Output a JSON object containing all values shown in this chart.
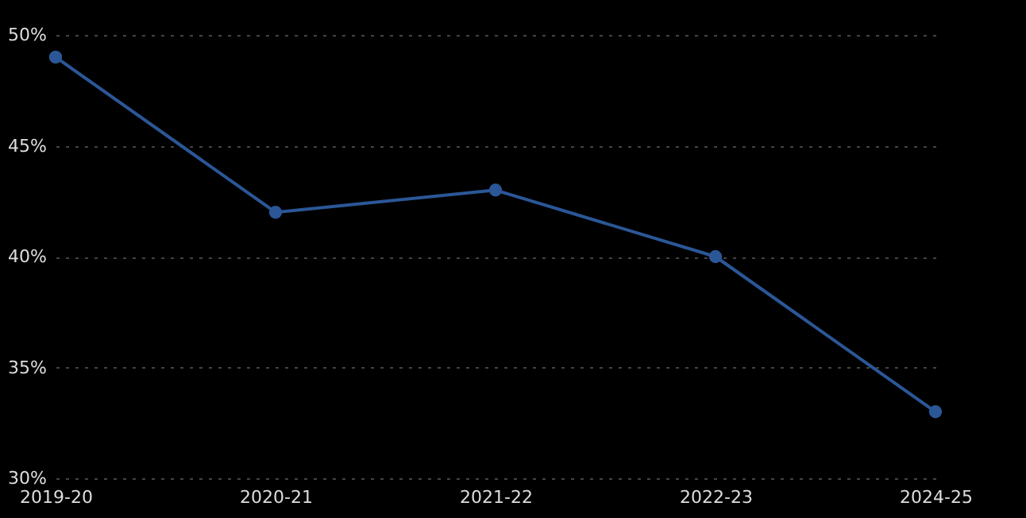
{
  "chart_data": {
    "type": "line",
    "categories": [
      "2019-20",
      "2020-21",
      "2021-22",
      "2022-23",
      "2024-25"
    ],
    "series": [
      {
        "color": "#2b5797",
        "values": [
          49,
          42,
          43,
          40,
          33
        ]
      }
    ],
    "ylim": [
      30,
      50
    ],
    "yticks": [
      {
        "value": 30,
        "label": "30%"
      },
      {
        "value": 35,
        "label": "35%"
      },
      {
        "value": 40,
        "label": "40%"
      },
      {
        "value": 45,
        "label": "45%"
      },
      {
        "value": 50,
        "label": "50%"
      }
    ],
    "grid": "y",
    "marker": "circle",
    "line_style": "solid"
  }
}
